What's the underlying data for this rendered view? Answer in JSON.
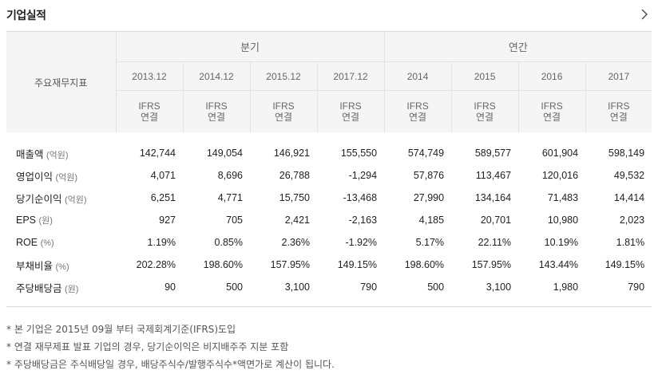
{
  "header": {
    "title": "기업실적"
  },
  "table": {
    "label_header": "주요재무지표",
    "groups": [
      {
        "label": "분기",
        "span": 4
      },
      {
        "label": "연간",
        "span": 4
      }
    ],
    "periods": [
      "2013.12",
      "2014.12",
      "2015.12",
      "2017.12",
      "2014",
      "2015",
      "2016",
      "2017"
    ],
    "standard": {
      "line1": "IFRS",
      "line2": "연결"
    },
    "rows": [
      {
        "label": "매출액",
        "unit": "(억원)",
        "values": [
          "142,744",
          "149,054",
          "146,921",
          "155,550",
          "574,749",
          "589,577",
          "601,904",
          "598,149"
        ]
      },
      {
        "label": "영업이익",
        "unit": "(억원)",
        "values": [
          "4,071",
          "8,696",
          "26,788",
          "-1,294",
          "57,876",
          "113,467",
          "120,016",
          "49,532"
        ]
      },
      {
        "label": "당기순이익",
        "unit": "(억원)",
        "values": [
          "6,251",
          "4,771",
          "15,750",
          "-13,468",
          "27,990",
          "134,164",
          "71,483",
          "14,414"
        ]
      },
      {
        "label": "EPS",
        "unit": "(원)",
        "values": [
          "927",
          "705",
          "2,421",
          "-2,163",
          "4,185",
          "20,701",
          "10,980",
          "2,023"
        ]
      },
      {
        "label": "ROE",
        "unit": "(%)",
        "values": [
          "1.19%",
          "0.85%",
          "2.36%",
          "-1.92%",
          "5.17%",
          "22.11%",
          "10.19%",
          "1.81%"
        ]
      },
      {
        "label": "부채비율",
        "unit": "(%)",
        "values": [
          "202.28%",
          "198.60%",
          "157.95%",
          "149.15%",
          "198.60%",
          "157.95%",
          "143.44%",
          "149.15%"
        ]
      },
      {
        "label": "주당배당금",
        "unit": "(원)",
        "values": [
          "90",
          "500",
          "3,100",
          "790",
          "500",
          "3,100",
          "1,980",
          "790"
        ]
      }
    ]
  },
  "notes": [
    "* 본 기업은 2015년 09월 부터 국제회계기준(IFRS)도입",
    "* 연결 재무제표 발표 기업의 경우, 당기순이익은 비지배주주 지분 포함",
    "* 주당배당금은 주식배당일 경우, 배당주식수/발행주식수*액면가로 계산이 됩니다."
  ]
}
